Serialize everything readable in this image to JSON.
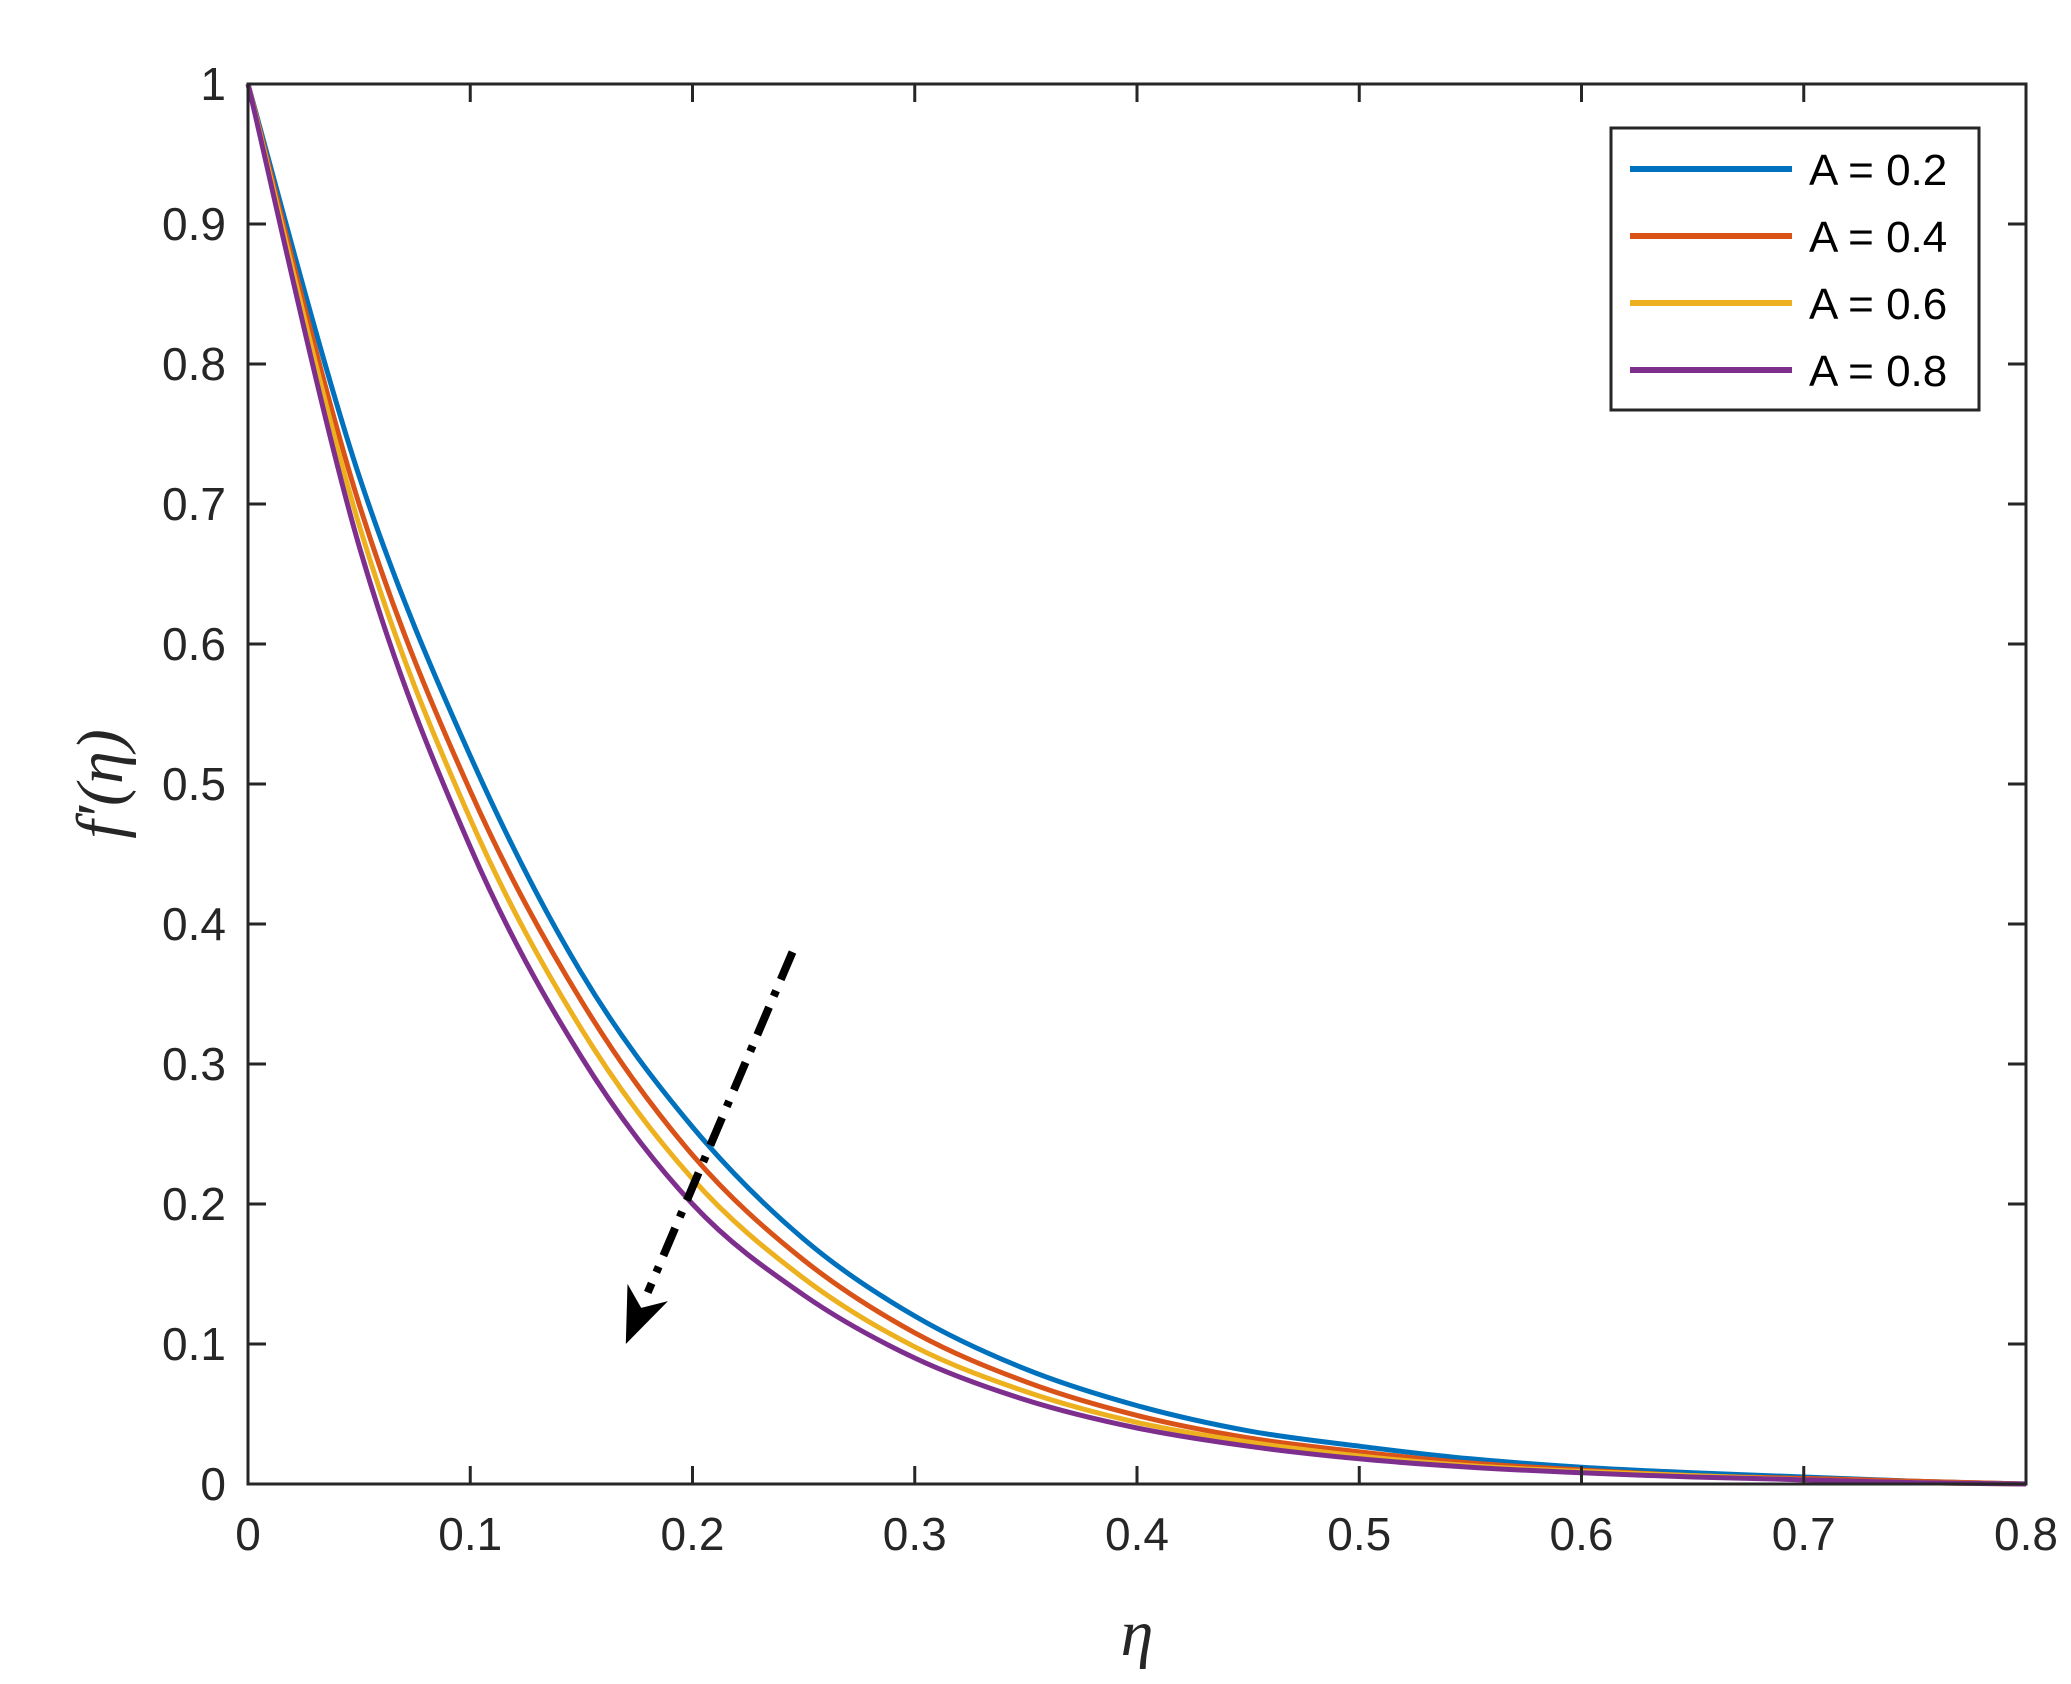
{
  "chart_data": {
    "type": "line",
    "title": "",
    "xlabel": "η",
    "ylabel": "f′(η)",
    "xlim": [
      0,
      0.8
    ],
    "ylim": [
      0,
      1
    ],
    "xticks": [
      "0",
      "0.1",
      "0.2",
      "0.3",
      "0.4",
      "0.5",
      "0.6",
      "0.7",
      "0.8"
    ],
    "yticks": [
      "0",
      "0.1",
      "0.2",
      "0.3",
      "0.4",
      "0.5",
      "0.6",
      "0.7",
      "0.8",
      "0.9",
      "1"
    ],
    "grid": false,
    "legend_position": "top-right",
    "x": [
      0,
      0.05,
      0.1,
      0.15,
      0.2,
      0.25,
      0.3,
      0.35,
      0.4,
      0.45,
      0.5,
      0.55,
      0.6,
      0.65,
      0.7,
      0.75,
      0.8
    ],
    "series": [
      {
        "name": "A = 0.2",
        "color": "#0072BD",
        "values": [
          1.0,
          0.72,
          0.52,
          0.365,
          0.255,
          0.175,
          0.12,
          0.082,
          0.056,
          0.038,
          0.027,
          0.018,
          0.012,
          0.008,
          0.005,
          0.002,
          0.0
        ]
      },
      {
        "name": "A = 0.4",
        "color": "#D95319",
        "values": [
          1.0,
          0.7,
          0.495,
          0.345,
          0.235,
          0.16,
          0.108,
          0.073,
          0.049,
          0.033,
          0.023,
          0.015,
          0.01,
          0.006,
          0.004,
          0.002,
          0.0
        ]
      },
      {
        "name": "A = 0.6",
        "color": "#EDB120",
        "values": [
          1.0,
          0.685,
          0.475,
          0.325,
          0.218,
          0.147,
          0.098,
          0.066,
          0.044,
          0.03,
          0.02,
          0.013,
          0.009,
          0.006,
          0.003,
          0.001,
          0.0
        ]
      },
      {
        "name": "A = 0.8",
        "color": "#7E2F8E",
        "values": [
          1.0,
          0.67,
          0.455,
          0.305,
          0.2,
          0.135,
          0.09,
          0.06,
          0.04,
          0.027,
          0.018,
          0.012,
          0.008,
          0.005,
          0.003,
          0.001,
          0.0
        ]
      }
    ],
    "annotations": [
      {
        "type": "arrow",
        "style": "dash-dot",
        "color": "#000000",
        "from": [
          0.245,
          0.38
        ],
        "to": [
          0.17,
          0.1
        ]
      }
    ]
  }
}
